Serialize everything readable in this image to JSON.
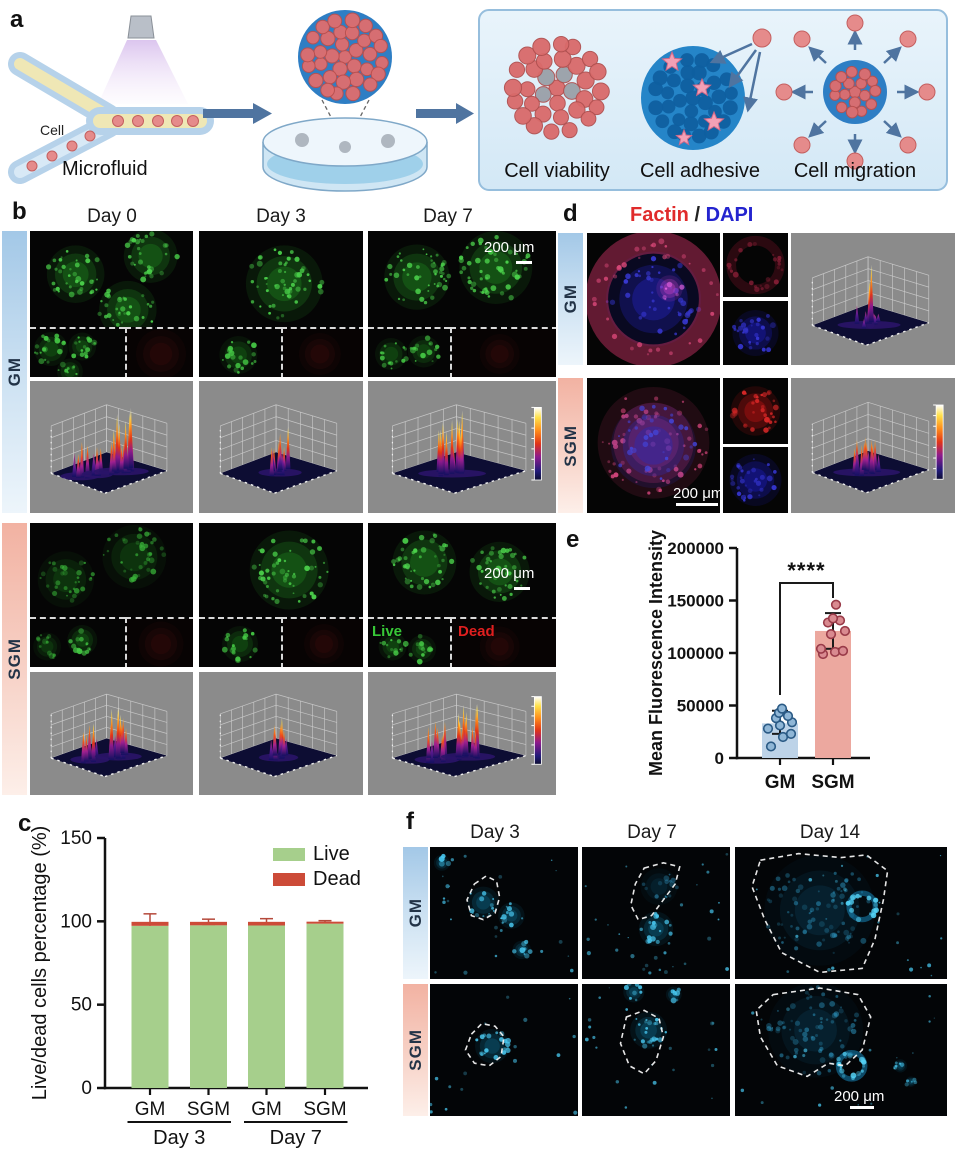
{
  "panel_labels": {
    "a": "a",
    "b": "b",
    "c": "c",
    "d": "d",
    "e": "e",
    "f": "f"
  },
  "panel_a": {
    "cell_label": "Cell",
    "device_label": "Microfluid",
    "captions": [
      "Cell viability",
      "Cell adhesive",
      "Cell migration"
    ]
  },
  "panel_b": {
    "days": [
      "Day 0",
      "Day 3",
      "Day 7"
    ],
    "rows": [
      "GM",
      "SGM"
    ],
    "scalebar": "200 μm",
    "live_label": "Live",
    "dead_label": "Dead"
  },
  "panel_d": {
    "title_factin": "Factin",
    "title_sep": " / ",
    "title_dapi": "DAPI",
    "rows": [
      "GM",
      "SGM"
    ],
    "scalebar": "200 μm"
  },
  "panel_f": {
    "days": [
      "Day 3",
      "Day 7",
      "Day 14"
    ],
    "rows": [
      "GM",
      "SGM"
    ],
    "scalebar": "200 μm"
  },
  "colors": {
    "gm_strip": "#a3c8e7",
    "sgm_strip": "#f2b2a2",
    "live_green": "#a6cf8c",
    "dead_red": "#cc4b38",
    "gm_bar_blue": "#bdd3e8",
    "sgm_bar_salmon": "#eca89f",
    "surface_bg_gray": "#8b8b8b"
  },
  "chart_data": [
    {
      "id": "panel_c_live_dead",
      "type": "bar",
      "stacked": true,
      "title": "",
      "xlabel": "",
      "ylabel": "Live/dead cells percentage (%)",
      "ylim": [
        0,
        150
      ],
      "yticks": [
        0,
        50,
        100,
        150
      ],
      "categories": [
        "GM",
        "SGM",
        "GM",
        "SGM"
      ],
      "group_labels": [
        "Day 3",
        "Day 7"
      ],
      "series": [
        {
          "name": "Live",
          "color": "#a6cf8c",
          "values": [
            97.3,
            97.6,
            97.5,
            98.6
          ]
        },
        {
          "name": "Dead",
          "color": "#cc4b38",
          "values": [
            2.4,
            2.1,
            2.2,
            1.2
          ]
        }
      ],
      "error_high": [
        4.8,
        1.6,
        1.9,
        0.6
      ],
      "legend": [
        "Live",
        "Dead"
      ],
      "legend_position": "top-right",
      "grid": false
    },
    {
      "id": "panel_e_mfi",
      "type": "bar-scatter",
      "title": "",
      "xlabel": "",
      "ylabel": "Mean Fluorescence Intensity",
      "ylim": [
        0,
        200000
      ],
      "yticks": [
        0,
        50000,
        100000,
        150000,
        200000
      ],
      "categories": [
        "GM",
        "SGM"
      ],
      "series": [
        {
          "name": "GM",
          "bar": 33000,
          "color": "#bdd3e8",
          "point_color": "#2a5a85",
          "point_fill": "#8fb6d6",
          "sd_low": 23000,
          "sd_high": 45000,
          "points": [
            11000,
            20000,
            23000,
            28000,
            31000,
            34000,
            38000,
            40000,
            43000,
            47000
          ]
        },
        {
          "name": "SGM",
          "bar": 121000,
          "color": "#eca89f",
          "point_color": "#993a48",
          "point_fill": "#d98a90",
          "sd_low": 104000,
          "sd_high": 138000,
          "points": [
            99000,
            101000,
            102000,
            104000,
            118000,
            121000,
            129000,
            131000,
            133000,
            146000
          ]
        }
      ],
      "significance_label": "****",
      "grid": false
    }
  ]
}
